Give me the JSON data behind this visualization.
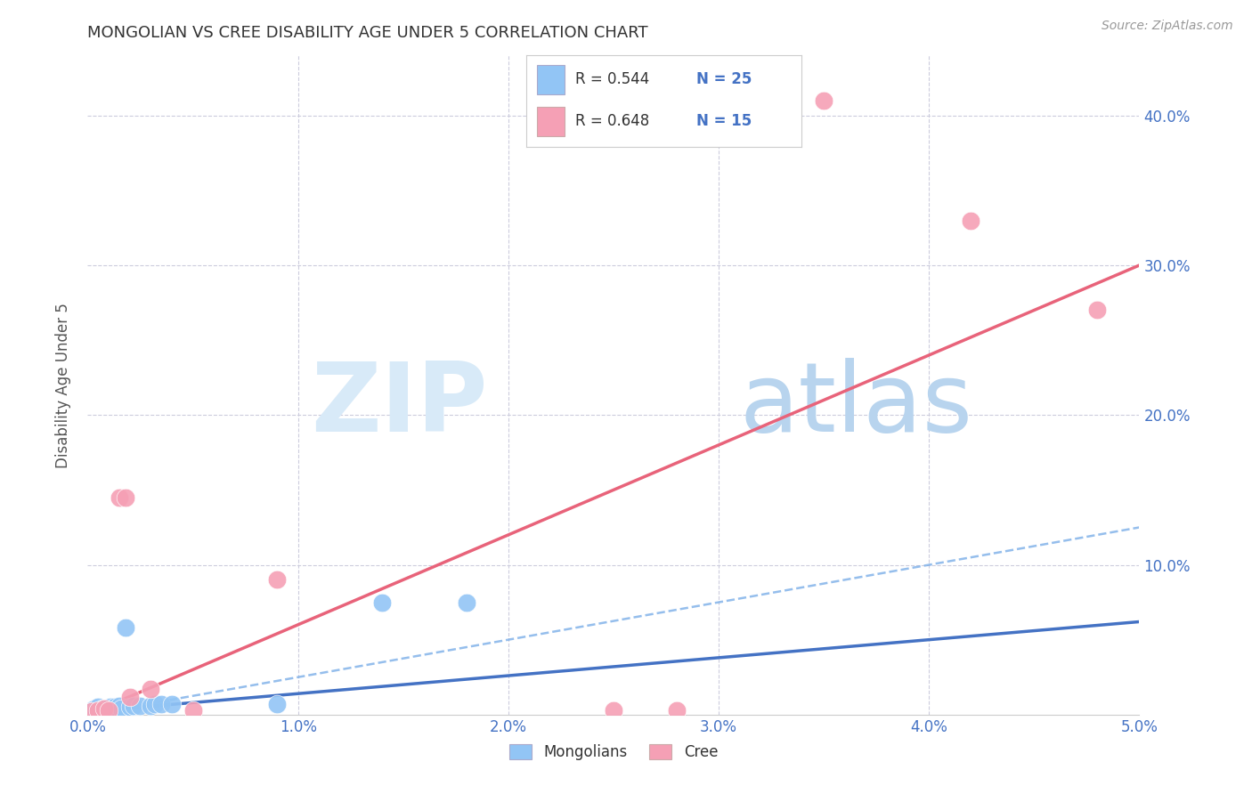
{
  "title": "MONGOLIAN VS CREE DISABILITY AGE UNDER 5 CORRELATION CHART",
  "source": "Source: ZipAtlas.com",
  "ylabel_label": "Disability Age Under 5",
  "legend_R": [
    0.544,
    0.648
  ],
  "legend_N": [
    25,
    15
  ],
  "xlim": [
    0.0,
    0.05
  ],
  "ylim": [
    0.0,
    0.44
  ],
  "mongolian_x": [
    0.0001,
    0.0002,
    0.0003,
    0.0004,
    0.0005,
    0.0006,
    0.0007,
    0.0008,
    0.0009,
    0.001,
    0.0011,
    0.0013,
    0.0015,
    0.0016,
    0.0018,
    0.002,
    0.0022,
    0.0025,
    0.003,
    0.0032,
    0.0035,
    0.004,
    0.009,
    0.014,
    0.018
  ],
  "mongolian_y": [
    0.002,
    0.003,
    0.004,
    0.003,
    0.005,
    0.003,
    0.004,
    0.004,
    0.003,
    0.004,
    0.005,
    0.005,
    0.006,
    0.004,
    0.058,
    0.005,
    0.006,
    0.006,
    0.006,
    0.007,
    0.007,
    0.007,
    0.007,
    0.075,
    0.075
  ],
  "cree_x": [
    0.0002,
    0.0005,
    0.0008,
    0.001,
    0.0015,
    0.0018,
    0.002,
    0.003,
    0.005,
    0.009,
    0.025,
    0.028,
    0.035,
    0.042,
    0.048
  ],
  "cree_y": [
    0.002,
    0.003,
    0.004,
    0.003,
    0.145,
    0.145,
    0.012,
    0.017,
    0.003,
    0.09,
    0.003,
    0.003,
    0.41,
    0.33,
    0.27
  ],
  "mongolian_color": "#92C5F5",
  "cree_color": "#F5A0B5",
  "mongolian_solid_line_color": "#4472C4",
  "mongolian_dashed_line_color": "#7BAEE8",
  "cree_line_color": "#E8637A",
  "blue_text_color": "#4472C4",
  "grid_color": "#CCCCDD",
  "background_color": "#FFFFFF",
  "watermark_zip_color": "#C8D8F0",
  "watermark_atlas_color": "#B0C8E8"
}
